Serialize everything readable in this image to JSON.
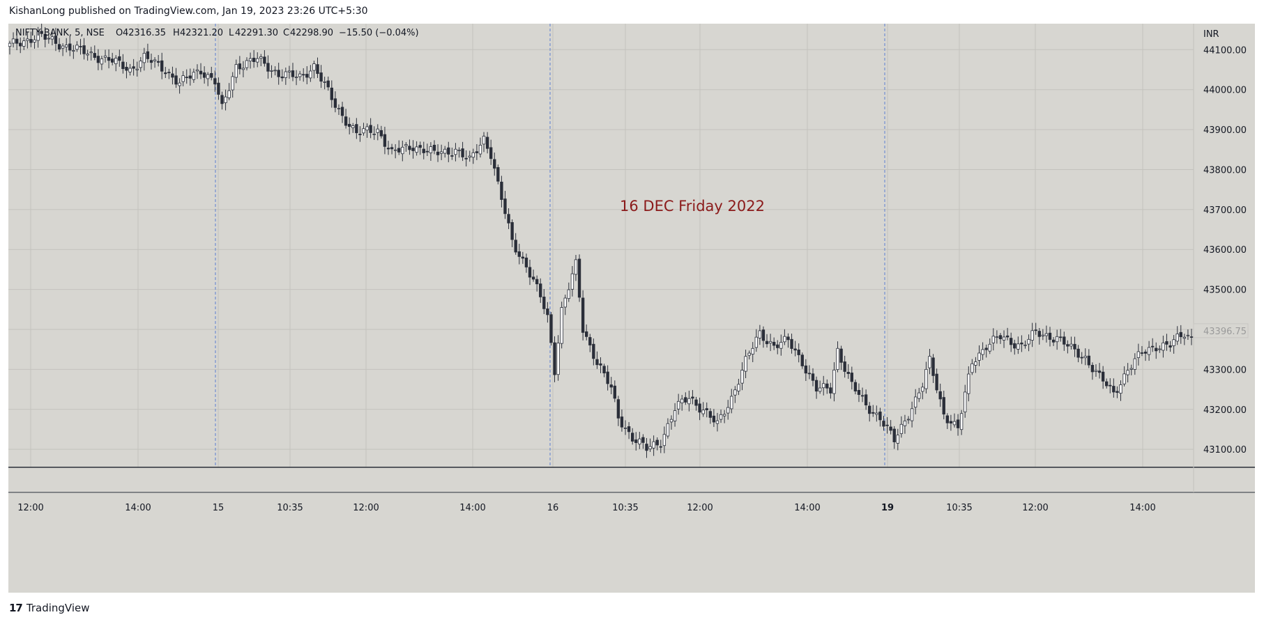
{
  "header": {
    "publisher": "KishanLong published on TradingView.com, Jan 19, 2023 23:26 UTC+5:30"
  },
  "footer": {
    "brand": "TradingView",
    "logo_glyph": "17"
  },
  "colors": {
    "background": "#d7d6d1",
    "grid": "#c3c2bd",
    "candle_up": "#ffffff",
    "candle_down": "#2a2e39",
    "annotation": "#8b1a1a",
    "session_line": "#5b7fd1"
  },
  "chart_data": {
    "type": "candlestick",
    "symbol": "NIFTY BANK, 5, NSE",
    "ohlc_legend": {
      "o_label": "O",
      "o": "42316.35",
      "h_label": "H",
      "h": "42321.20",
      "l_label": "L",
      "l": "42291.30",
      "c_label": "C",
      "c": "42298.90",
      "change": "−15.50 (−0.04%)"
    },
    "currency": "INR",
    "y_ticks": [
      44100,
      44000,
      43900,
      43800,
      43700,
      43600,
      43500,
      43400,
      43300,
      43200,
      43100
    ],
    "y_tick_labels": [
      "44100.00",
      "44000.00",
      "43900.00",
      "43800.00",
      "43700.00",
      "43600.00",
      "43500.00",
      "43400.00",
      "43300.00",
      "43200.00",
      "43100.00"
    ],
    "ylim": [
      43055,
      44165
    ],
    "last_price_label": "43396.75",
    "last_price": 43396.75,
    "x_tick_labels": [
      "12:00",
      "14:00",
      "15",
      "10:35",
      "12:00",
      "14:00",
      "16",
      "10:35",
      "12:00",
      "14:00",
      "19",
      "10:35",
      "12:00",
      "14:00"
    ],
    "session_breaks": [
      "15",
      "16",
      "19"
    ],
    "annotation": "16 DEC Friday 2022",
    "keypoints": [
      [
        0,
        44110
      ],
      [
        8,
        44135
      ],
      [
        14,
        44115
      ],
      [
        22,
        44090
      ],
      [
        28,
        44075
      ],
      [
        34,
        44050
      ],
      [
        38,
        44080
      ],
      [
        44,
        44050
      ],
      [
        48,
        44015
      ],
      [
        54,
        44050
      ],
      [
        58,
        44020
      ],
      [
        60,
        43950
      ],
      [
        64,
        44060
      ],
      [
        70,
        44075
      ],
      [
        76,
        44040
      ],
      [
        82,
        44030
      ],
      [
        86,
        44060
      ],
      [
        92,
        43960
      ],
      [
        98,
        43890
      ],
      [
        104,
        43900
      ],
      [
        108,
        43840
      ],
      [
        114,
        43860
      ],
      [
        120,
        43840
      ],
      [
        126,
        43850
      ],
      [
        130,
        43820
      ],
      [
        134,
        43880
      ],
      [
        136,
        43840
      ],
      [
        138,
        43760
      ],
      [
        142,
        43620
      ],
      [
        146,
        43560
      ],
      [
        150,
        43480
      ],
      [
        152,
        43430
      ],
      [
        154,
        43300
      ],
      [
        156,
        43450
      ],
      [
        160,
        43560
      ],
      [
        162,
        43400
      ],
      [
        166,
        43320
      ],
      [
        170,
        43250
      ],
      [
        172,
        43180
      ],
      [
        176,
        43130
      ],
      [
        180,
        43100
      ],
      [
        184,
        43120
      ],
      [
        188,
        43200
      ],
      [
        192,
        43230
      ],
      [
        196,
        43200
      ],
      [
        200,
        43160
      ],
      [
        204,
        43230
      ],
      [
        208,
        43320
      ],
      [
        212,
        43390
      ],
      [
        216,
        43360
      ],
      [
        220,
        43370
      ],
      [
        224,
        43320
      ],
      [
        228,
        43250
      ],
      [
        232,
        43250
      ],
      [
        234,
        43350
      ],
      [
        238,
        43260
      ],
      [
        242,
        43210
      ],
      [
        246,
        43180
      ],
      [
        250,
        43120
      ],
      [
        254,
        43190
      ],
      [
        258,
        43260
      ],
      [
        260,
        43320
      ],
      [
        264,
        43190
      ],
      [
        268,
        43150
      ],
      [
        272,
        43320
      ],
      [
        276,
        43360
      ],
      [
        280,
        43380
      ],
      [
        286,
        43360
      ],
      [
        290,
        43390
      ],
      [
        296,
        43380
      ],
      [
        300,
        43350
      ],
      [
        304,
        43330
      ],
      [
        308,
        43280
      ],
      [
        312,
        43240
      ],
      [
        316,
        43300
      ],
      [
        320,
        43340
      ],
      [
        324,
        43360
      ],
      [
        328,
        43360
      ],
      [
        332,
        43390
      ],
      [
        334,
        43380
      ]
    ]
  }
}
